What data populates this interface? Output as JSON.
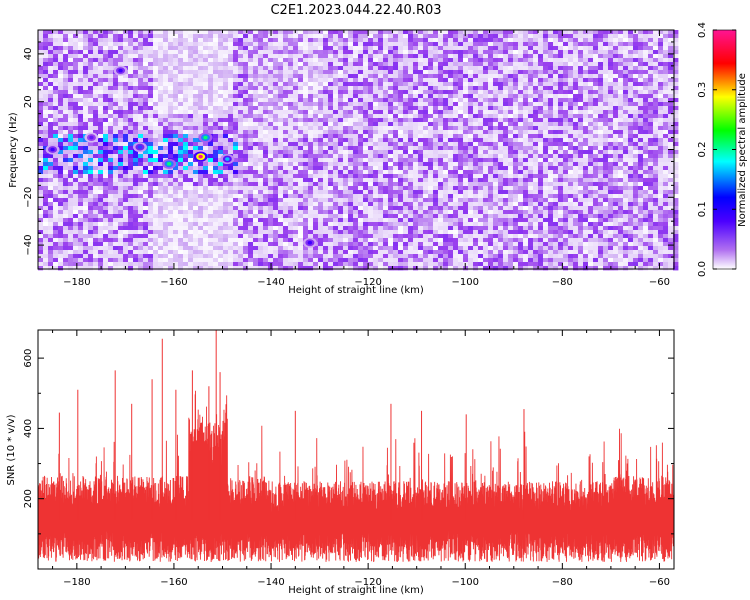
{
  "title": "C2E1.2023.044.22.40.R03",
  "chart_data": [
    {
      "type": "heatmap",
      "name": "spectrogram",
      "xlabel": "Height of straight line (km)",
      "ylabel": "Frequency (Hz)",
      "xlim": [
        -188,
        -57
      ],
      "ylim": [
        -50,
        50
      ],
      "xticks": [
        -180,
        -160,
        -140,
        -120,
        -100,
        -80,
        -60
      ],
      "yticks": [
        -40,
        -20,
        0,
        20,
        40
      ],
      "colorbar": {
        "label": "Normalized spectral amplitude",
        "range": [
          0.0,
          0.4
        ],
        "ticks": [
          0.0,
          0.1,
          0.2,
          0.3,
          0.4
        ],
        "colormap": [
          "#ffffff",
          "#8a2be2",
          "#0000ff",
          "#00ffff",
          "#00ff00",
          "#ffff00",
          "#ff0000",
          "#ff1493"
        ]
      },
      "background_speckle_level": 0.06,
      "strong_region": {
        "x_range": [
          -188,
          -147
        ],
        "freq_range": [
          -10,
          8
        ],
        "level": 0.12
      },
      "hot_spots": [
        {
          "x": -154.5,
          "freq": -3,
          "amp": 0.4
        },
        {
          "x": -153.5,
          "freq": 5,
          "amp": 0.2
        },
        {
          "x": -161,
          "freq": -6,
          "amp": 0.2
        },
        {
          "x": -171,
          "freq": 33,
          "amp": 0.12
        },
        {
          "x": -132,
          "freq": -39,
          "amp": 0.12
        },
        {
          "x": -185,
          "freq": 0,
          "amp": 0.12
        },
        {
          "x": -149,
          "freq": -4,
          "amp": 0.15
        },
        {
          "x": -177,
          "freq": 5,
          "amp": 0.1
        },
        {
          "x": -167,
          "freq": 1,
          "amp": 0.13
        }
      ]
    },
    {
      "type": "line",
      "name": "snr",
      "xlabel": "Height of straight line (km)",
      "ylabel": "SNR (10 * v/v)",
      "xlim": [
        -188,
        -57
      ],
      "ylim": [
        0,
        680
      ],
      "xticks": [
        -180,
        -160,
        -140,
        -120,
        -100,
        -80,
        -60
      ],
      "yticks": [
        200,
        400,
        600
      ],
      "color": "#ee3333",
      "baseline": 140,
      "peaks": [
        {
          "x": -183.6,
          "y": 445
        },
        {
          "x": -179.8,
          "y": 510
        },
        {
          "x": -172.1,
          "y": 565
        },
        {
          "x": -168.7,
          "y": 470
        },
        {
          "x": -164.5,
          "y": 540
        },
        {
          "x": -162.4,
          "y": 655
        },
        {
          "x": -159.6,
          "y": 510
        },
        {
          "x": -156.2,
          "y": 565
        },
        {
          "x": -152.8,
          "y": 520
        },
        {
          "x": -151.3,
          "y": 680
        },
        {
          "x": -150.5,
          "y": 560
        },
        {
          "x": -135.0,
          "y": 450
        },
        {
          "x": -115.3,
          "y": 470
        },
        {
          "x": -109.0,
          "y": 450
        },
        {
          "x": -99.8,
          "y": 440
        },
        {
          "x": -87.9,
          "y": 455
        }
      ]
    }
  ]
}
